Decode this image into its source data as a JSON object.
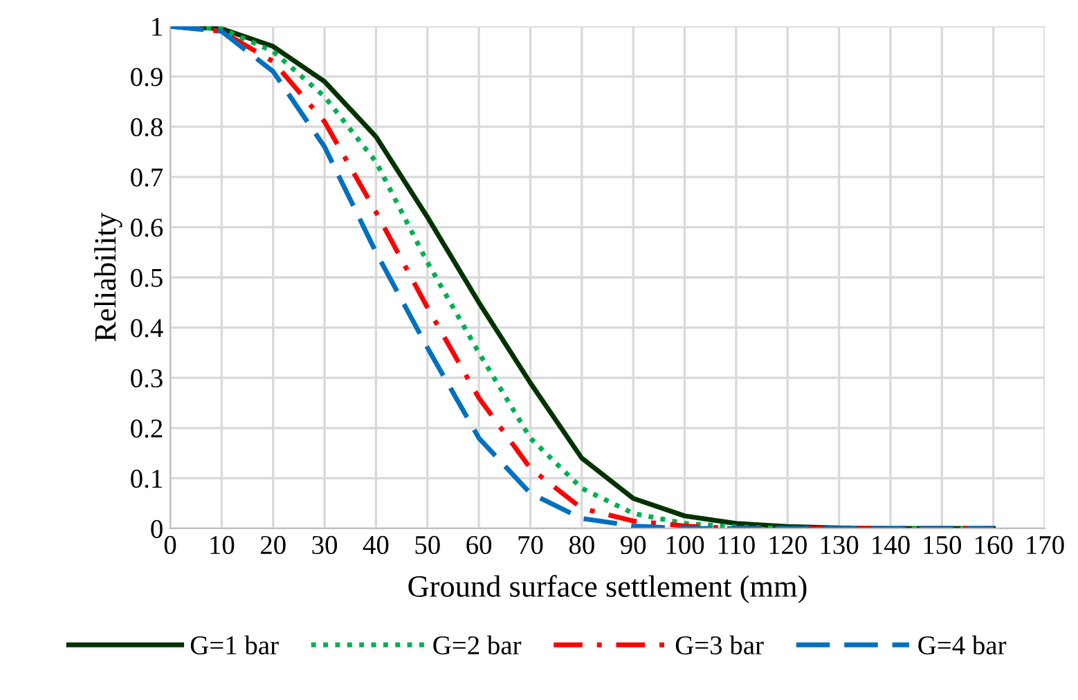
{
  "chart_data": {
    "type": "line",
    "xlabel": "Ground surface settlement (mm)",
    "ylabel": "Reliability",
    "x": [
      0,
      10,
      20,
      30,
      40,
      50,
      60,
      70,
      80,
      90,
      100,
      110,
      120,
      130,
      140,
      150,
      160
    ],
    "series": [
      {
        "name": "G=1 bar",
        "color": "#003300",
        "line_style": "solid",
        "values": [
          1,
          0.995,
          0.96,
          0.89,
          0.78,
          0.62,
          0.45,
          0.29,
          0.14,
          0.06,
          0.025,
          0.01,
          0.004,
          0.001,
          0,
          0,
          0
        ]
      },
      {
        "name": "G=2 bar",
        "color": "#00b050",
        "line_style": "dotted",
        "values": [
          1,
          0.995,
          0.95,
          0.86,
          0.73,
          0.53,
          0.35,
          0.18,
          0.08,
          0.03,
          0.01,
          0.003,
          0,
          0,
          0,
          0,
          0
        ]
      },
      {
        "name": "G=3 bar",
        "color": "#ff0000",
        "line_style": "dashdot",
        "values": [
          1,
          0.99,
          0.93,
          0.81,
          0.63,
          0.44,
          0.26,
          0.12,
          0.04,
          0.015,
          0.005,
          0,
          0,
          0,
          0,
          0,
          0
        ]
      },
      {
        "name": "G=4 bar",
        "color": "#0070c0",
        "line_style": "dashed",
        "values": [
          1,
          0.99,
          0.91,
          0.76,
          0.55,
          0.36,
          0.18,
          0.07,
          0.02,
          0.005,
          0,
          0,
          0,
          0,
          0,
          0,
          0
        ]
      }
    ],
    "xlim": [
      0,
      170
    ],
    "xticks": [
      0,
      10,
      20,
      30,
      40,
      50,
      60,
      70,
      80,
      90,
      100,
      110,
      120,
      130,
      140,
      150,
      160,
      170
    ],
    "ylim": [
      0,
      1
    ],
    "yticks": [
      0,
      0.1,
      0.2,
      0.3,
      0.4,
      0.5,
      0.6,
      0.7,
      0.8,
      0.9,
      1
    ],
    "grid": true,
    "legend": "bottom",
    "marker": "none"
  }
}
